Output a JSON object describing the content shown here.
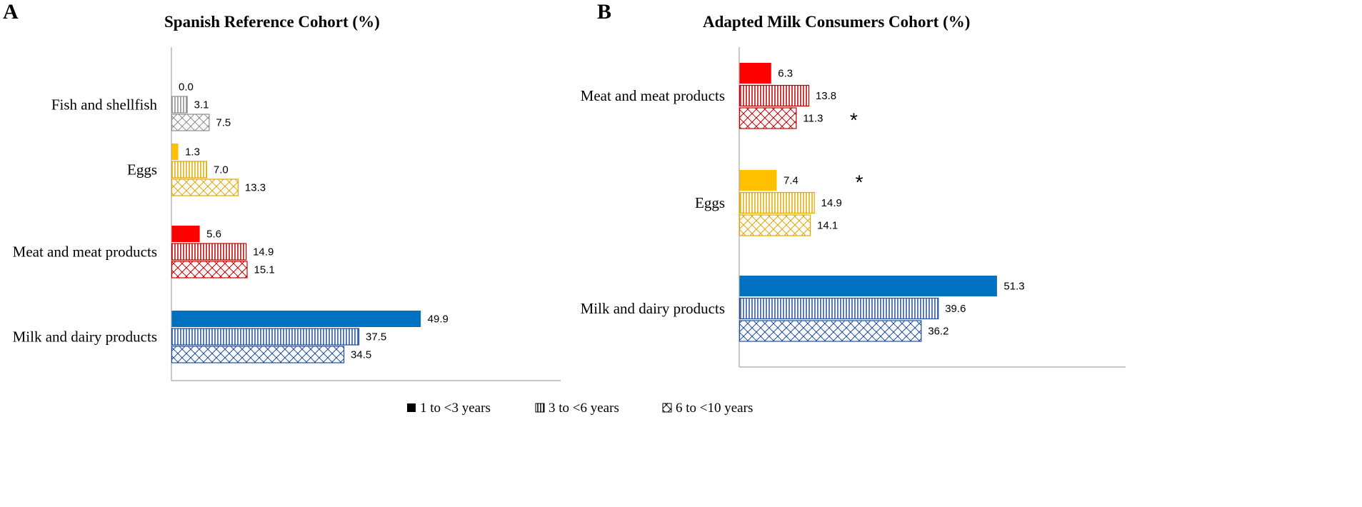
{
  "chart_data": [
    {
      "panel": "A",
      "type": "bar",
      "orientation": "horizontal",
      "title": "Spanish Reference Cohort (%)",
      "categories": [
        "Fish and shellfish",
        "Eggs",
        "Meat and meat products",
        "Milk and dairy products"
      ],
      "category_colors": [
        "#a6a6a6",
        "#ffc000",
        "#ff0000",
        "#0070c0"
      ],
      "category_dark_colors": [
        "#8c8c8c",
        "#e0a800",
        "#c00000",
        "#1f4e9c"
      ],
      "series": [
        {
          "name": "1 to <3 years",
          "values": [
            0.0,
            1.3,
            5.6,
            49.9
          ],
          "labels": [
            "0.0",
            "1.3",
            "5.6",
            "49.9"
          ]
        },
        {
          "name": "3 to <6 years",
          "values": [
            3.1,
            7.0,
            14.9,
            37.5
          ],
          "labels": [
            "3.1",
            "7.0",
            "14.9",
            "37.5"
          ]
        },
        {
          "name": "6 to <10 years",
          "values": [
            7.5,
            13.3,
            15.1,
            34.5
          ],
          "labels": [
            "7.5",
            "13.3",
            "15.1",
            "34.5"
          ]
        }
      ],
      "significance": [],
      "xlim": [
        0,
        78
      ]
    },
    {
      "panel": "B",
      "type": "bar",
      "orientation": "horizontal",
      "title": "Adapted Milk Consumers Cohort (%)",
      "categories": [
        "Meat and meat products",
        "Eggs",
        "Milk and dairy products"
      ],
      "category_colors": [
        "#ff0000",
        "#ffc000",
        "#0070c0"
      ],
      "category_dark_colors": [
        "#c00000",
        "#e0a800",
        "#1f4e9c"
      ],
      "series": [
        {
          "name": "1 to <3 years",
          "values": [
            6.3,
            7.4,
            51.3
          ],
          "labels": [
            "6.3",
            "7.4",
            "51.3"
          ]
        },
        {
          "name": "3 to <6 years",
          "values": [
            13.8,
            14.9,
            39.6
          ],
          "labels": [
            "13.8",
            "14.9",
            "39.6"
          ]
        },
        {
          "name": "6 to <10 years",
          "values": [
            11.3,
            14.1,
            36.2
          ],
          "labels": [
            "11.3",
            "14.1",
            "36.2"
          ]
        }
      ],
      "significance": [
        {
          "category": 0,
          "series": 2,
          "mark": "*"
        },
        {
          "category": 1,
          "series": 0,
          "mark": "*"
        }
      ],
      "xlim": [
        0,
        77
      ]
    }
  ],
  "legend": [
    {
      "label": "1 to <3 years",
      "pattern": "solid"
    },
    {
      "label": "3 to <6 years",
      "pattern": "vertical"
    },
    {
      "label": "6 to <10 years",
      "pattern": "hatch"
    }
  ]
}
